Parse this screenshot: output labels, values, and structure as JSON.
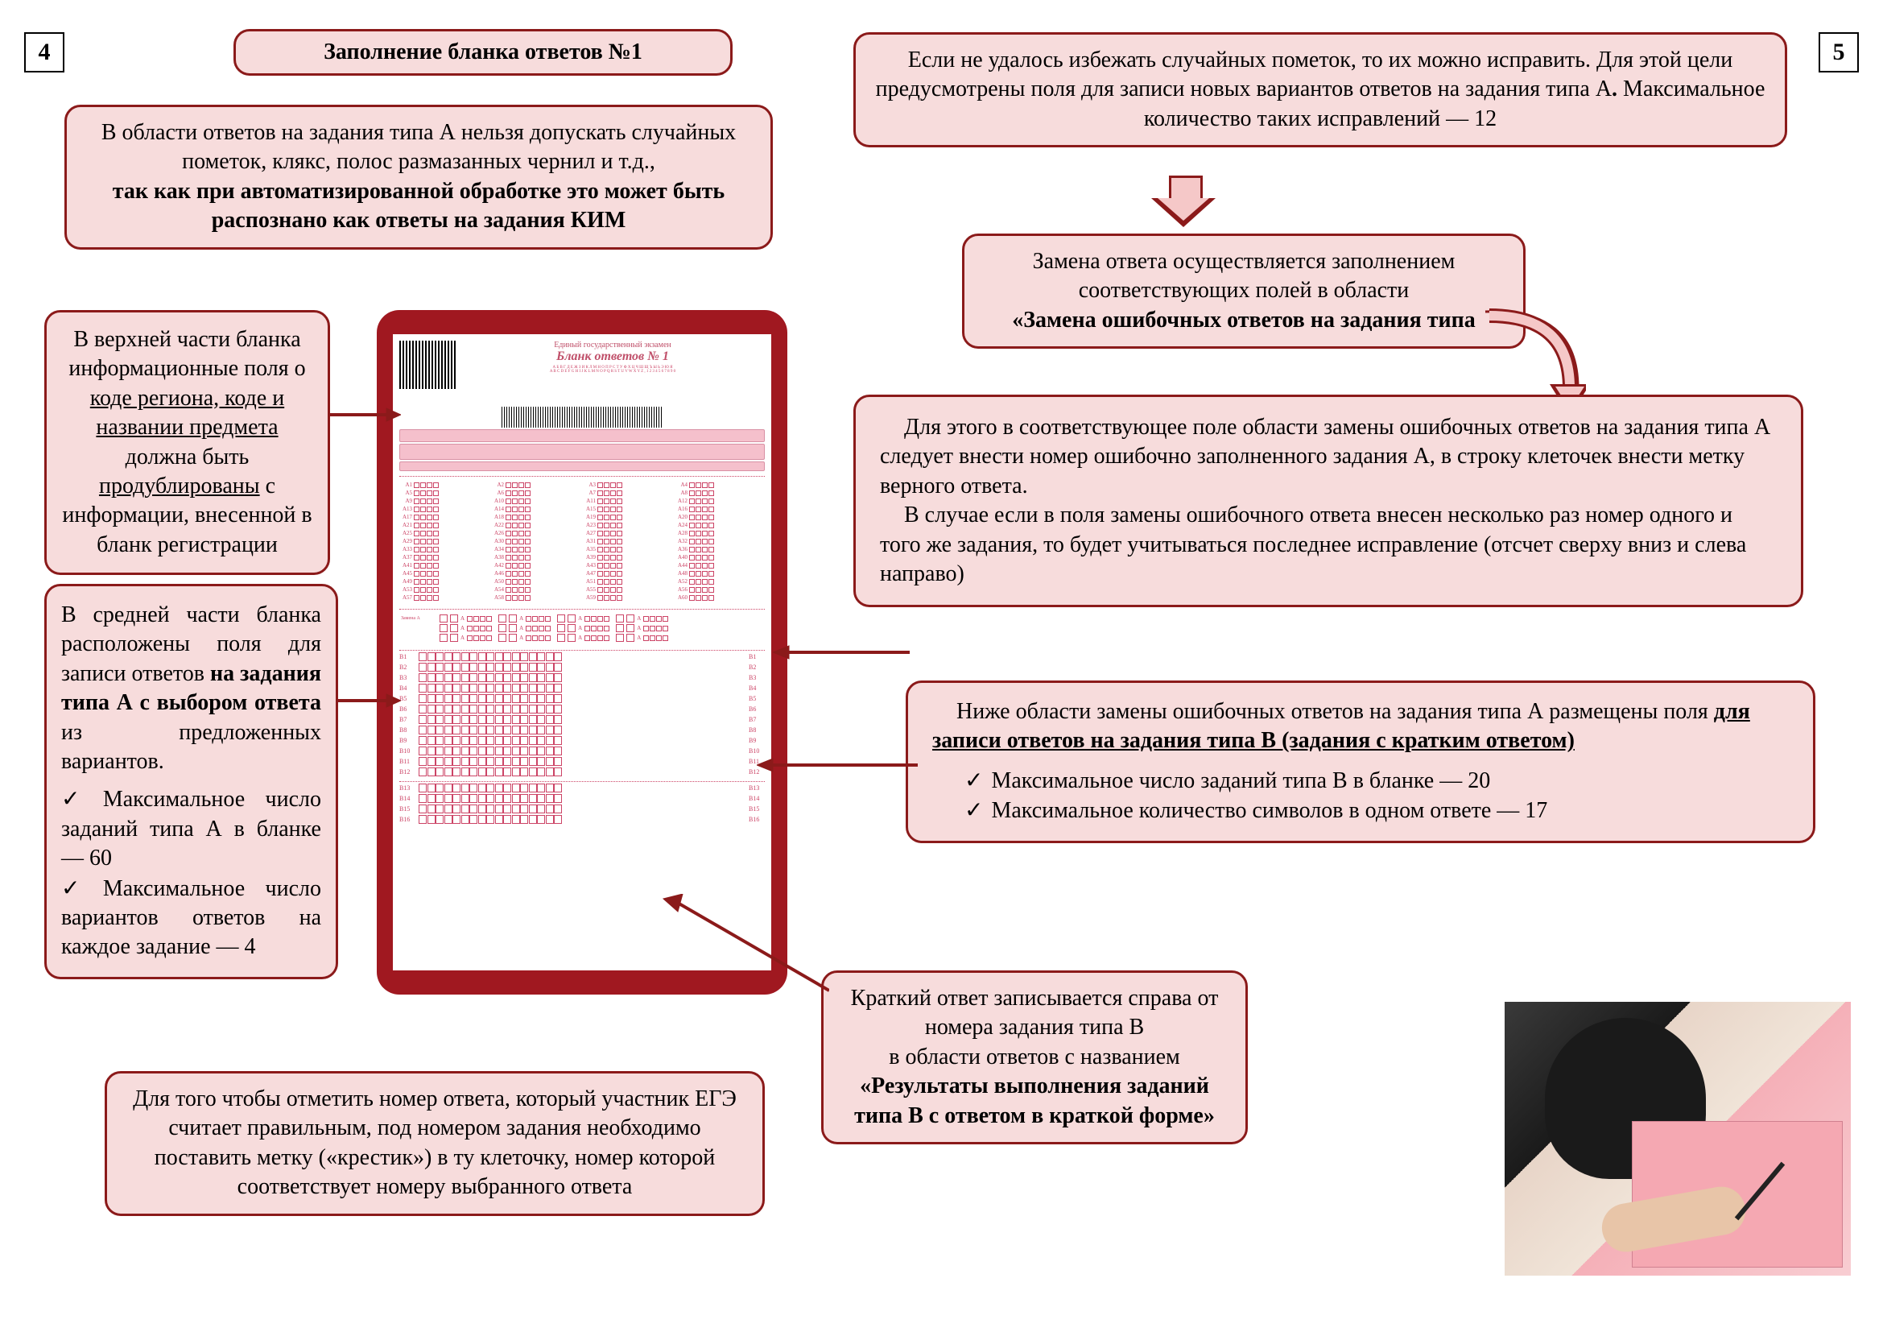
{
  "pageLeft": "4",
  "pageRight": "5",
  "titleBox": "Заполнение бланка ответов №1",
  "box1_l1": "В области ответов на задания типа А нельзя допускать случайных пометок, клякс, полос размазанных чернил и т.д.,",
  "box1_b": "так как при автоматизированной обработке это может быть распознано как ответы на задания КИМ",
  "box2_p1a": "В верхней части бланка информационные поля о ",
  "box2_u1": "коде региона, коде и названии предмета",
  "box2_p1b": " должна быть ",
  "box2_u2": "продублированы",
  "box2_p1c": " с информации, внесенной в бланк регистрации",
  "box3_p1a": "В средней части бланка расположены поля для записи ответов ",
  "box3_b1": "на задания типа А с выбором ответа",
  "box3_p1b": " из предложенных вариантов.",
  "box3_li1": "Максимальное число заданий типа А в бланке — 60",
  "box3_li2": "Максимальное число вариантов ответов на каждое задание — 4",
  "box4": "Для того чтобы отметить номер ответа, который участник ЕГЭ считает правильным, под номером задания необходимо поставить метку («крестик») в ту клеточку, номер которой соответствует номеру выбранного ответа",
  "box5_p1": "Если не удалось избежать случайных пометок, то их можно исправить. Для этой цели предусмотрены поля для записи новых вариантов ответов на задания типа А",
  "box5_b": ".",
  "box5_p2": " Максимальное количество таких исправлений — 12",
  "box6_p1": "Замена ответа осуществляется заполнением соответствующих полей в области",
  "box6_b": "«Замена ошибочных ответов на задания типа",
  "box7_p1": "Для этого в соответствующее поле области замены ошибочных ответов на задания типа А следует внести номер ошибочно заполненного задания А, в строку клеточек внести метку верного ответа.",
  "box7_p2": "В случае если в поля замены ошибочного ответа внесен несколько раз номер одного и того же задания, то будет учитываться последнее исправление (отсчет сверху вниз и слева направо)",
  "box8_p1a": "Ниже области замены ошибочных ответов на задания типа А размещены поля ",
  "box8_u": "для записи ответов на задания типа В (задания с кратким ответом)",
  "box8_li1": "Максимальное число заданий типа В в бланке — 20",
  "box8_li2": "Максимальное количество символов в одном ответе — 17",
  "box9_p1": "Краткий ответ записывается справа от номера задания типа В",
  "box9_p2": "в области ответов с названием",
  "box9_b": "«Результаты выполнения заданий типа В с ответом в краткой форме»",
  "form_t1": "Единый государственный экзамен",
  "form_t2": "Бланк ответов № 1",
  "colors": {
    "boxBg": "#f7dcdc",
    "boxBorder": "#8b1a1a",
    "formBg": "#a01820",
    "pink": "#f5c0cc"
  }
}
